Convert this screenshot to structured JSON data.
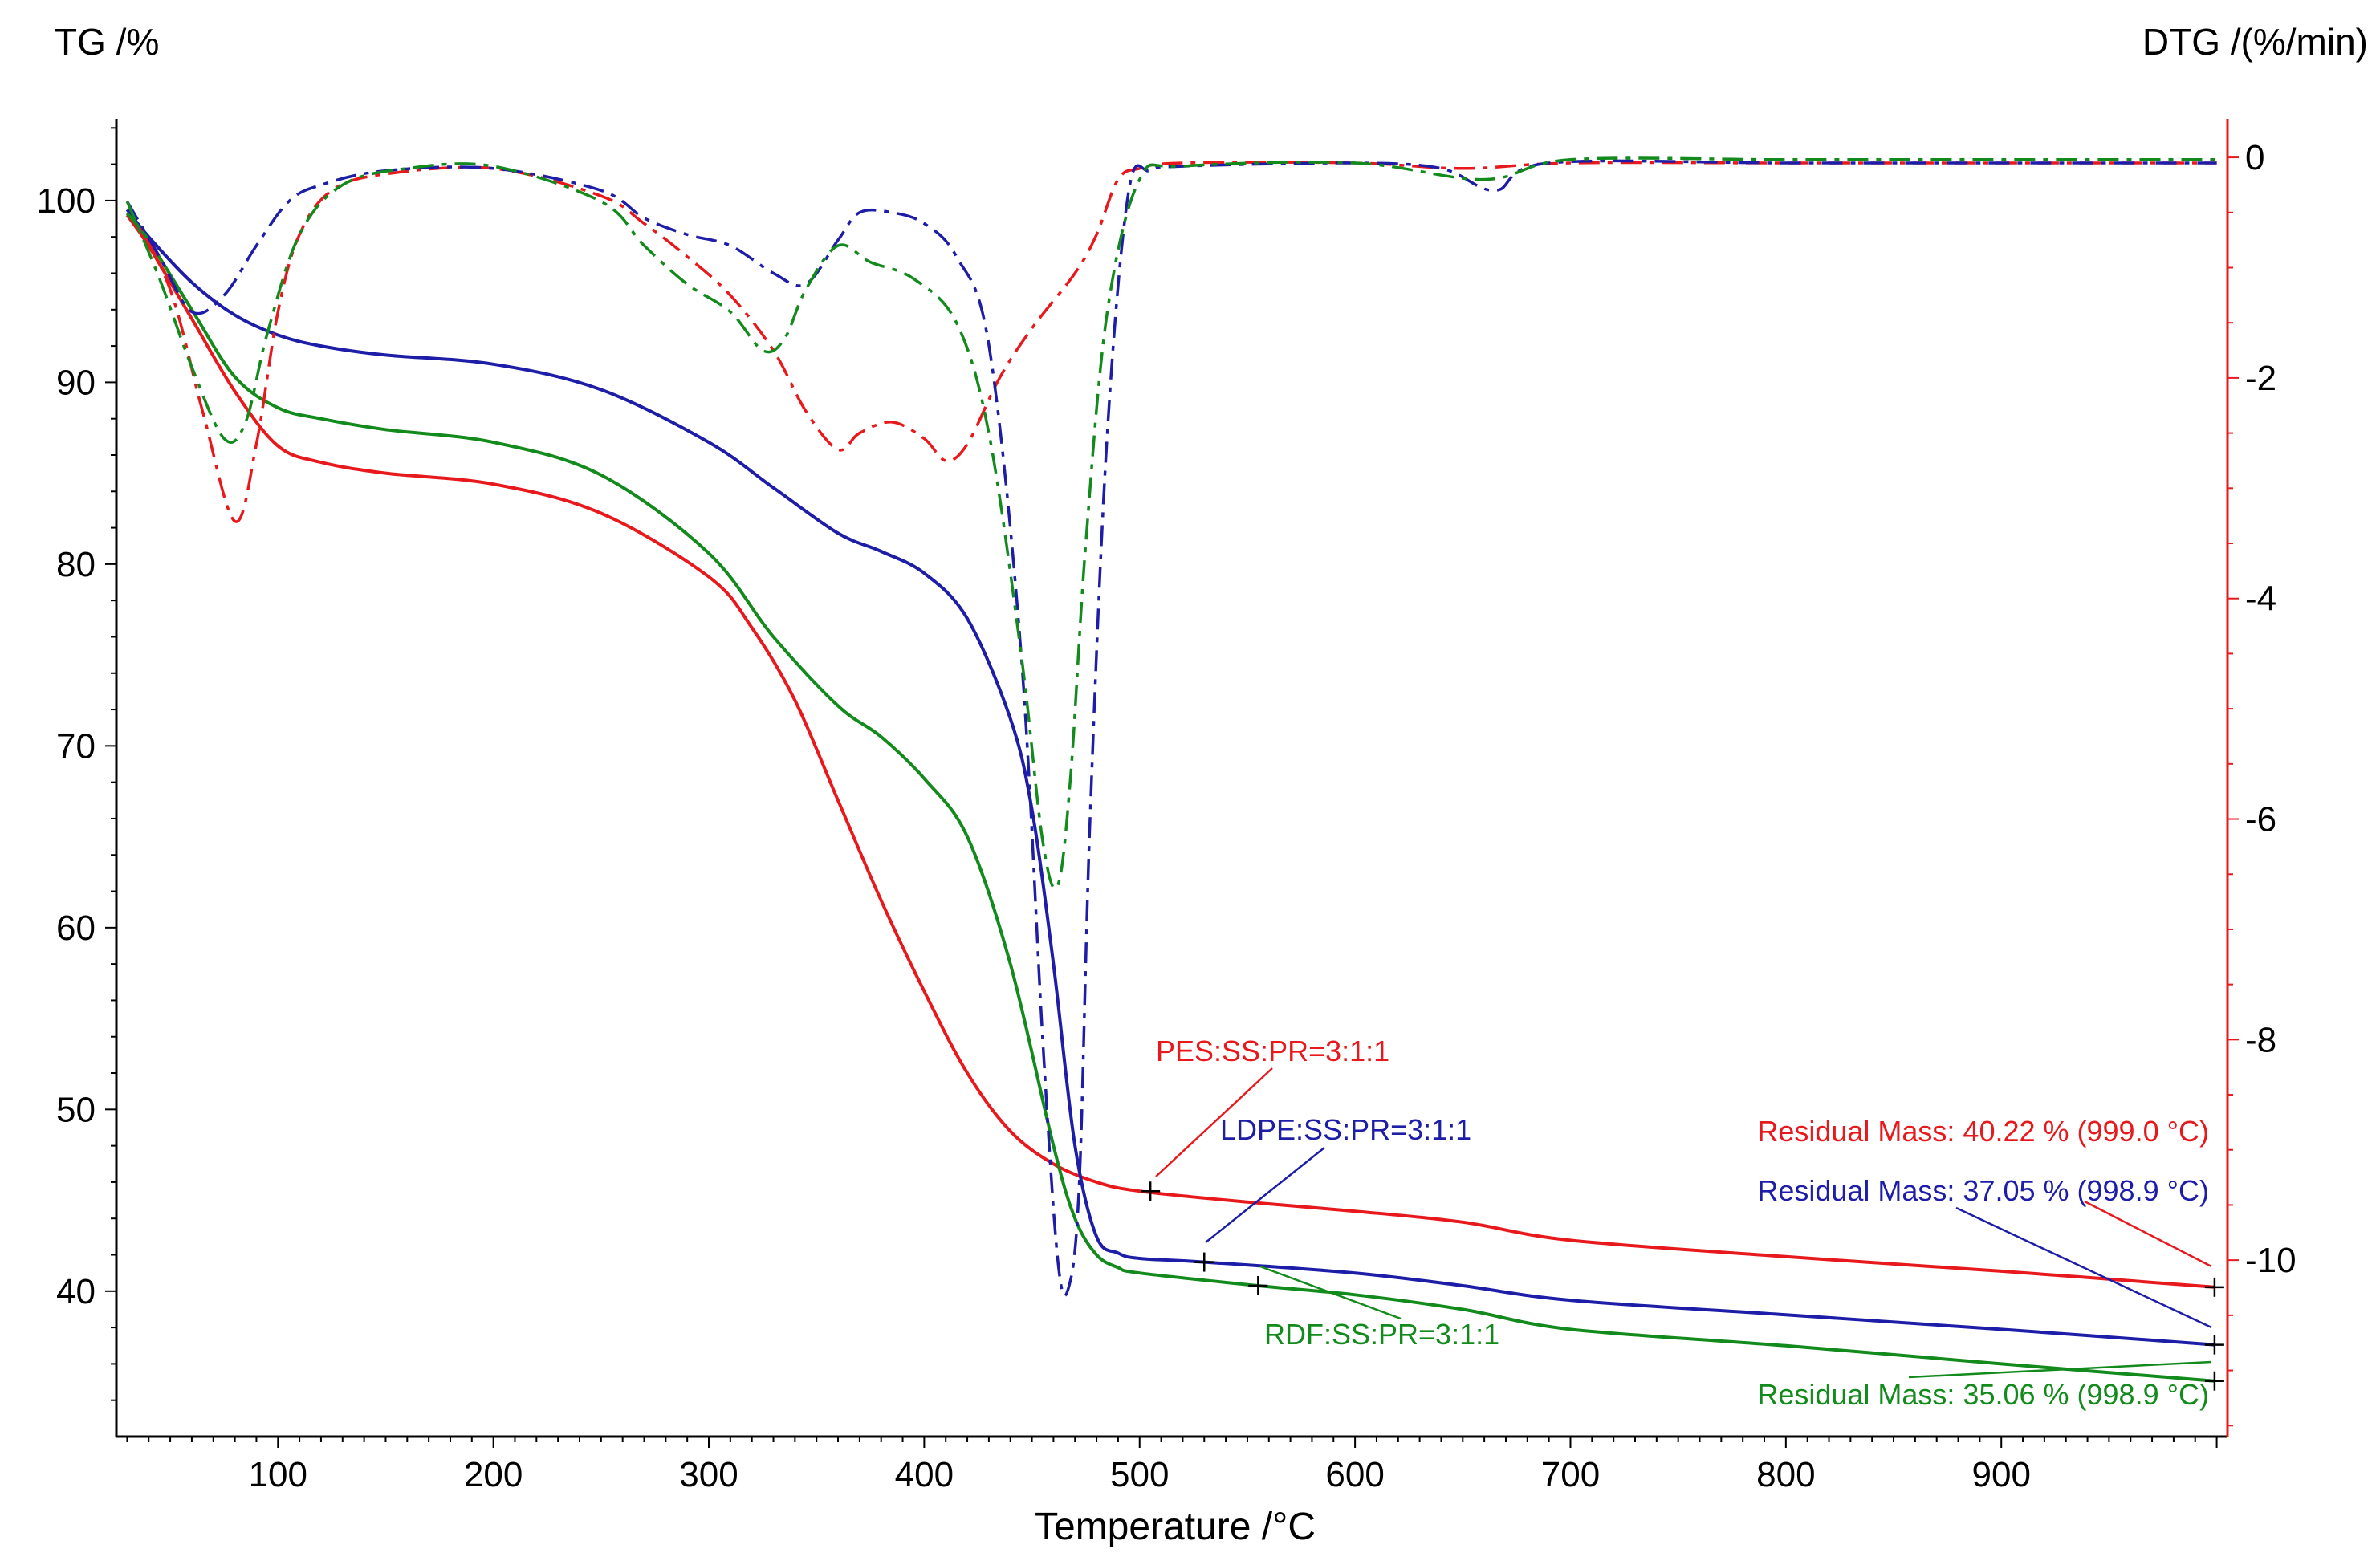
{
  "chart_data": {
    "type": "line",
    "xlabel": "Temperature /°C",
    "ylabel_left": "TG /%",
    "ylabel_right": "DTG /(%/min)",
    "xlim": [
      25,
      1005
    ],
    "ylim_left": [
      32,
      104.5
    ],
    "ylim_right": [
      -11.6,
      0.35
    ],
    "x_ticks": [
      100,
      200,
      300,
      400,
      500,
      600,
      700,
      800,
      900
    ],
    "y_ticks_left": [
      40,
      50,
      60,
      70,
      80,
      90,
      100
    ],
    "y_ticks_right": [
      0,
      -2,
      -4,
      -6,
      -8,
      -10
    ],
    "colors": {
      "red": "#e8191c",
      "blue": "#1d1da8",
      "green": "#138a1c",
      "right_axis": "#e8191c",
      "left_axis": "#000000"
    },
    "series": [
      {
        "name": "PES:SS:PR=3:1:1",
        "kind": "TG",
        "axis": "left",
        "color": "#e8191c",
        "x": [
          30,
          40,
          60,
          80,
          100,
          120,
          150,
          200,
          250,
          300,
          320,
          340,
          360,
          380,
          400,
          420,
          440,
          460,
          480,
          500,
          550,
          600,
          650,
          700,
          800,
          900,
          999
        ],
        "y": [
          99.2,
          97.5,
          93.5,
          89.5,
          86.5,
          85.6,
          85.0,
          84.4,
          82.8,
          79.3,
          76.5,
          72.5,
          67.0,
          61.5,
          56.5,
          52.0,
          48.8,
          47.0,
          46.0,
          45.5,
          44.9,
          44.4,
          43.8,
          42.8,
          41.9,
          41.1,
          40.22
        ]
      },
      {
        "name": "LDPE:SS:PR=3:1:1",
        "kind": "TG",
        "axis": "left",
        "color": "#1d1da8",
        "x": [
          30,
          40,
          60,
          80,
          100,
          120,
          150,
          200,
          250,
          300,
          330,
          360,
          380,
          400,
          420,
          440,
          450,
          460,
          470,
          480,
          490,
          500,
          530,
          600,
          650,
          700,
          800,
          900,
          999
        ],
        "y": [
          99.5,
          98.0,
          95.5,
          93.7,
          92.6,
          92.0,
          91.5,
          91.0,
          89.6,
          86.7,
          84.2,
          81.7,
          80.7,
          79.5,
          77.0,
          71.5,
          66.5,
          58.0,
          48.0,
          43.0,
          42.1,
          41.8,
          41.6,
          41.0,
          40.3,
          39.5,
          38.7,
          37.9,
          37.05
        ]
      },
      {
        "name": "RDF:SS:PR=3:1:1",
        "kind": "TG",
        "axis": "left",
        "color": "#138a1c",
        "x": [
          30,
          40,
          60,
          80,
          100,
          120,
          150,
          200,
          250,
          300,
          330,
          360,
          380,
          400,
          420,
          440,
          460,
          470,
          480,
          490,
          500,
          555,
          600,
          650,
          700,
          800,
          900,
          999
        ],
        "y": [
          99.3,
          97.8,
          94.0,
          90.3,
          88.6,
          88.0,
          87.4,
          86.7,
          84.9,
          80.6,
          76.0,
          72.2,
          70.5,
          68.2,
          65.0,
          58.0,
          48.0,
          44.0,
          42.0,
          41.3,
          41.0,
          40.3,
          39.8,
          39.0,
          37.9,
          37.0,
          36.0,
          35.06
        ]
      },
      {
        "name": "PES:SS:PR=3:1:1 DTG",
        "kind": "DTG",
        "axis": "right",
        "color": "#e8191c",
        "x": [
          30,
          50,
          65,
          80,
          90,
          100,
          110,
          125,
          150,
          200,
          250,
          270,
          290,
          310,
          330,
          345,
          360,
          370,
          385,
          400,
          410,
          420,
          435,
          450,
          470,
          480,
          490,
          500,
          520,
          600,
          650,
          700,
          800,
          900,
          1000
        ],
        "y": [
          -0.4,
          -1.2,
          -2.3,
          -3.3,
          -2.6,
          -1.4,
          -0.7,
          -0.3,
          -0.15,
          -0.1,
          -0.35,
          -0.6,
          -0.9,
          -1.25,
          -1.75,
          -2.3,
          -2.65,
          -2.5,
          -2.4,
          -2.55,
          -2.75,
          -2.6,
          -2.0,
          -1.55,
          -1.05,
          -0.7,
          -0.2,
          -0.1,
          -0.05,
          -0.05,
          -0.1,
          -0.05,
          -0.05,
          -0.05,
          -0.05
        ]
      },
      {
        "name": "LDPE:SS:PR=3:1:1 DTG",
        "kind": "DTG",
        "axis": "right",
        "color": "#1d1da8",
        "x": [
          30,
          45,
          60,
          75,
          90,
          105,
          120,
          150,
          200,
          250,
          270,
          290,
          310,
          330,
          345,
          360,
          370,
          385,
          400,
          415,
          430,
          445,
          455,
          462,
          467,
          472,
          477,
          485,
          495,
          505,
          520,
          600,
          640,
          665,
          690,
          800,
          900,
          1000
        ],
        "y": [
          -0.4,
          -0.9,
          -1.4,
          -1.25,
          -0.8,
          -0.4,
          -0.25,
          -0.12,
          -0.1,
          -0.3,
          -0.55,
          -0.7,
          -0.8,
          -1.05,
          -1.15,
          -0.75,
          -0.5,
          -0.5,
          -0.6,
          -0.9,
          -1.7,
          -4.5,
          -8.0,
          -10.0,
          -10.25,
          -9.3,
          -6.0,
          -2.5,
          -0.3,
          -0.12,
          -0.08,
          -0.05,
          -0.1,
          -0.3,
          -0.05,
          -0.05,
          -0.05,
          -0.05
        ]
      },
      {
        "name": "RDF:SS:PR=3:1:1 DTG",
        "kind": "DTG",
        "axis": "right",
        "color": "#138a1c",
        "x": [
          30,
          45,
          60,
          75,
          85,
          95,
          110,
          130,
          160,
          200,
          250,
          270,
          290,
          310,
          325,
          335,
          345,
          360,
          375,
          395,
          415,
          430,
          445,
          455,
          462,
          468,
          475,
          485,
          500,
          520,
          600,
          660,
          700,
          800,
          900,
          1000
        ],
        "y": [
          -0.4,
          -1.1,
          -1.9,
          -2.55,
          -2.4,
          -1.6,
          -0.7,
          -0.25,
          -0.1,
          -0.08,
          -0.4,
          -0.8,
          -1.15,
          -1.4,
          -1.75,
          -1.65,
          -1.2,
          -0.8,
          -0.95,
          -1.1,
          -1.5,
          -2.5,
          -4.5,
          -6.2,
          -6.6,
          -5.6,
          -3.5,
          -1.4,
          -0.2,
          -0.08,
          -0.05,
          -0.2,
          -0.02,
          -0.02,
          -0.02,
          -0.02
        ]
      }
    ],
    "annotations": [
      {
        "text": "PES:SS:PR=3:1:1",
        "color": "#e8191c",
        "marker_x": 505,
        "marker_y": 45.5
      },
      {
        "text": "LDPE:SS:PR=3:1:1",
        "color": "#1d1da8",
        "marker_x": 530,
        "marker_y": 41.6
      },
      {
        "text": "RDF:SS:PR=3:1:1",
        "color": "#138a1c",
        "marker_x": 555,
        "marker_y": 40.3
      },
      {
        "text": "Residual Mass: 40.22 % (999.0 °C)",
        "color": "#e8191c",
        "marker_x": 999,
        "marker_y": 40.22
      },
      {
        "text": "Residual Mass: 37.05 % (998.9 °C)",
        "color": "#1d1da8",
        "marker_x": 999,
        "marker_y": 37.05
      },
      {
        "text": "Residual Mass: 35.06 % (998.9 °C)",
        "color": "#138a1c",
        "marker_x": 999,
        "marker_y": 35.06
      }
    ]
  }
}
